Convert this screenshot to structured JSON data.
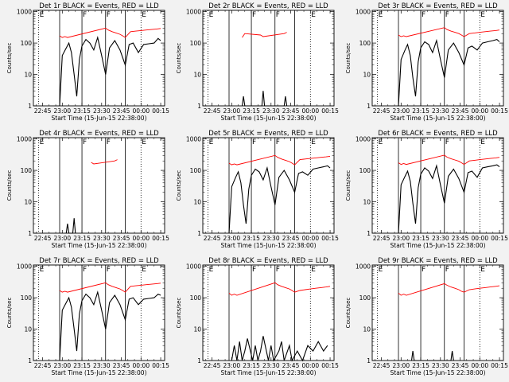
{
  "figure": {
    "type": "rhessi-detector-rate-grid",
    "rows": 3,
    "cols": 3
  },
  "colors": {
    "background": "#f2f2f2",
    "frame": "#000000",
    "events": "#000000",
    "lld": "#ff0000"
  },
  "common": {
    "ylabel": "Counts/sec",
    "xlabel": "Start Time (15-Jun-15 22:38:00)",
    "ytick_labels": [
      "1",
      "10",
      "100",
      "1000"
    ],
    "xtick_labels": [
      "22:45",
      "23:00",
      "23:15",
      "23:30",
      "23:45",
      "00:00",
      "00:15"
    ],
    "marker_labels": [
      "E",
      "F",
      "F",
      "E"
    ]
  },
  "chart_data": [
    {
      "type": "line",
      "title": "Det 1r BLACK = Events, RED = LLD",
      "x_unit": "minutes since 22:38:00",
      "xlim": [
        0,
        100
      ],
      "ylim": [
        1,
        1100
      ],
      "yscale": "log",
      "eclipse_markers": [
        {
          "t": 4,
          "label": "E"
        },
        {
          "t": 82,
          "label": "E"
        }
      ],
      "flare_lines": [
        20,
        37,
        55,
        70
      ],
      "flare_markers": [
        {
          "t": 37,
          "label": "F"
        },
        {
          "t": 55,
          "label": "F"
        }
      ],
      "series": [
        {
          "name": "Events",
          "color": "black",
          "x": [
            20,
            22,
            25,
            27,
            29,
            31,
            33,
            35,
            37,
            40,
            43,
            46,
            49,
            52,
            55,
            58,
            62,
            66,
            70,
            73,
            76,
            80,
            84,
            88,
            92,
            95,
            97
          ],
          "y": [
            1,
            40,
            70,
            100,
            50,
            10,
            2,
            30,
            80,
            130,
            100,
            60,
            150,
            40,
            10,
            70,
            120,
            60,
            20,
            90,
            100,
            50,
            90,
            95,
            100,
            140,
            120
          ]
        },
        {
          "name": "LLD",
          "color": "red",
          "x": [
            20,
            22,
            24,
            26,
            55,
            57,
            60,
            63,
            66,
            68,
            70,
            74,
            78,
            82,
            86,
            90,
            94,
            97
          ],
          "y": [
            170,
            150,
            160,
            150,
            300,
            260,
            230,
            210,
            190,
            170,
            150,
            230,
            240,
            250,
            260,
            270,
            280,
            290
          ]
        }
      ]
    },
    {
      "type": "line",
      "title": "Det 2r BLACK = Events, RED = LLD",
      "x_unit": "minutes since 22:38:00",
      "xlim": [
        0,
        100
      ],
      "ylim": [
        1,
        1100
      ],
      "yscale": "log",
      "eclipse_markers": [
        {
          "t": 4,
          "label": "E"
        },
        {
          "t": 82,
          "label": "E"
        }
      ],
      "flare_lines": [
        20,
        37,
        55,
        70
      ],
      "flare_markers": [
        {
          "t": 37,
          "label": "F"
        },
        {
          "t": 55,
          "label": "F"
        }
      ],
      "series": [
        {
          "name": "Events",
          "color": "black",
          "x": [
            30,
            31,
            32,
            45,
            46,
            47,
            62,
            63,
            64
          ],
          "y": [
            1,
            2,
            1,
            1,
            3,
            1,
            1,
            2,
            1
          ]
        },
        {
          "name": "LLD",
          "color": "red",
          "x": [
            30,
            32,
            44,
            46,
            62,
            64
          ],
          "y": [
            150,
            200,
            180,
            160,
            200,
            220
          ]
        }
      ]
    },
    {
      "type": "line",
      "title": "Det 3r BLACK = Events, RED = LLD",
      "x_unit": "minutes since 22:38:00",
      "xlim": [
        0,
        100
      ],
      "ylim": [
        1,
        1100
      ],
      "yscale": "log",
      "eclipse_markers": [
        {
          "t": 4,
          "label": "E"
        },
        {
          "t": 82,
          "label": "E"
        }
      ],
      "flare_lines": [
        20,
        37,
        55,
        70
      ],
      "flare_markers": [
        {
          "t": 37,
          "label": "F"
        },
        {
          "t": 55,
          "label": "F"
        }
      ],
      "series": [
        {
          "name": "Events",
          "color": "black",
          "x": [
            20,
            22,
            25,
            27,
            29,
            31,
            33,
            35,
            37,
            40,
            43,
            46,
            49,
            52,
            55,
            58,
            62,
            66,
            70,
            73,
            76,
            80,
            84,
            88,
            92,
            95,
            97
          ],
          "y": [
            1,
            30,
            60,
            90,
            40,
            8,
            2,
            25,
            70,
            110,
            90,
            50,
            120,
            30,
            8,
            60,
            100,
            50,
            20,
            70,
            80,
            60,
            100,
            110,
            120,
            130,
            110
          ]
        },
        {
          "name": "LLD",
          "color": "red",
          "x": [
            20,
            22,
            24,
            26,
            55,
            57,
            60,
            63,
            66,
            68,
            70,
            74,
            78,
            82,
            86,
            90,
            94,
            97
          ],
          "y": [
            180,
            160,
            170,
            160,
            310,
            270,
            240,
            220,
            200,
            180,
            160,
            200,
            210,
            220,
            230,
            240,
            250,
            260
          ]
        }
      ]
    },
    {
      "type": "line",
      "title": "Det 4r BLACK = Events, RED = LLD",
      "x_unit": "minutes since 22:38:00",
      "xlim": [
        0,
        100
      ],
      "ylim": [
        1,
        1100
      ],
      "yscale": "log",
      "eclipse_markers": [
        {
          "t": 4,
          "label": "E"
        },
        {
          "t": 82,
          "label": "E"
        }
      ],
      "flare_lines": [
        20,
        37,
        55,
        70
      ],
      "flare_markers": [
        {
          "t": 37,
          "label": "F"
        },
        {
          "t": 55,
          "label": "F"
        }
      ],
      "series": [
        {
          "name": "Events",
          "color": "black",
          "x": [
            25,
            26,
            27,
            30,
            31,
            32
          ],
          "y": [
            1,
            2,
            1,
            1,
            3,
            1
          ]
        },
        {
          "name": "LLD",
          "color": "red",
          "x": [
            44,
            46,
            62,
            64
          ],
          "y": [
            180,
            160,
            200,
            220
          ]
        }
      ]
    },
    {
      "type": "line",
      "title": "Det 5r BLACK = Events, RED = LLD",
      "x_unit": "minutes since 22:38:00",
      "xlim": [
        0,
        100
      ],
      "ylim": [
        1,
        1100
      ],
      "yscale": "log",
      "eclipse_markers": [
        {
          "t": 4,
          "label": "E"
        },
        {
          "t": 82,
          "label": "E"
        }
      ],
      "flare_lines": [
        20,
        37,
        55,
        70
      ],
      "flare_markers": [
        {
          "t": 37,
          "label": "F"
        },
        {
          "t": 55,
          "label": "F"
        }
      ],
      "series": [
        {
          "name": "Events",
          "color": "black",
          "x": [
            20,
            22,
            25,
            27,
            29,
            31,
            33,
            35,
            37,
            40,
            43,
            46,
            49,
            52,
            55,
            58,
            62,
            66,
            70,
            73,
            76,
            80,
            84,
            88,
            92,
            95,
            97
          ],
          "y": [
            1,
            30,
            60,
            90,
            40,
            8,
            2,
            25,
            70,
            110,
            90,
            50,
            120,
            30,
            8,
            60,
            100,
            50,
            20,
            80,
            90,
            70,
            110,
            120,
            130,
            140,
            120
          ]
        },
        {
          "name": "LLD",
          "color": "red",
          "x": [
            20,
            22,
            24,
            26,
            55,
            57,
            60,
            63,
            66,
            68,
            70,
            74,
            78,
            82,
            86,
            90,
            94,
            97
          ],
          "y": [
            170,
            150,
            160,
            150,
            300,
            260,
            230,
            210,
            190,
            170,
            150,
            220,
            230,
            240,
            250,
            260,
            270,
            280
          ]
        }
      ]
    },
    {
      "type": "line",
      "title": "Det 6r BLACK = Events, RED = LLD",
      "x_unit": "minutes since 22:38:00",
      "xlim": [
        0,
        100
      ],
      "ylim": [
        1,
        1100
      ],
      "yscale": "log",
      "eclipse_markers": [
        {
          "t": 4,
          "label": "E"
        },
        {
          "t": 82,
          "label": "E"
        }
      ],
      "flare_lines": [
        20,
        37,
        55,
        70
      ],
      "flare_markers": [
        {
          "t": 37,
          "label": "F"
        },
        {
          "t": 55,
          "label": "F"
        }
      ],
      "series": [
        {
          "name": "Events",
          "color": "black",
          "x": [
            20,
            22,
            25,
            27,
            29,
            31,
            33,
            35,
            37,
            40,
            43,
            46,
            49,
            52,
            55,
            58,
            62,
            66,
            70,
            73,
            76,
            80,
            84,
            88,
            92,
            95,
            97
          ],
          "y": [
            1,
            35,
            65,
            95,
            45,
            9,
            2,
            28,
            75,
            120,
            95,
            55,
            140,
            35,
            9,
            65,
            110,
            55,
            20,
            85,
            95,
            60,
            120,
            130,
            140,
            150,
            130
          ]
        },
        {
          "name": "LLD",
          "color": "red",
          "x": [
            20,
            22,
            24,
            26,
            55,
            57,
            60,
            63,
            66,
            68,
            70,
            74,
            78,
            82,
            86,
            90,
            94,
            97
          ],
          "y": [
            175,
            155,
            165,
            155,
            305,
            265,
            235,
            215,
            195,
            175,
            155,
            200,
            210,
            220,
            230,
            240,
            250,
            260
          ]
        }
      ]
    },
    {
      "type": "line",
      "title": "Det 7r BLACK = Events, RED = LLD",
      "x_unit": "minutes since 22:38:00",
      "xlim": [
        0,
        100
      ],
      "ylim": [
        1,
        1100
      ],
      "yscale": "log",
      "eclipse_markers": [
        {
          "t": 4,
          "label": "E"
        },
        {
          "t": 82,
          "label": "E"
        }
      ],
      "flare_lines": [
        20,
        37,
        55,
        70
      ],
      "flare_markers": [
        {
          "t": 37,
          "label": "F"
        },
        {
          "t": 55,
          "label": "F"
        }
      ],
      "series": [
        {
          "name": "Events",
          "color": "black",
          "x": [
            20,
            22,
            25,
            27,
            29,
            31,
            33,
            35,
            37,
            40,
            43,
            46,
            49,
            52,
            55,
            58,
            62,
            66,
            70,
            73,
            76,
            80,
            84,
            88,
            92,
            95,
            97
          ],
          "y": [
            1,
            40,
            70,
            100,
            50,
            10,
            2,
            30,
            80,
            130,
            100,
            60,
            150,
            40,
            10,
            70,
            120,
            60,
            20,
            90,
            100,
            60,
            90,
            95,
            100,
            130,
            120
          ]
        },
        {
          "name": "LLD",
          "color": "red",
          "x": [
            20,
            22,
            24,
            26,
            55,
            57,
            60,
            63,
            66,
            68,
            70,
            74,
            78,
            82,
            86,
            90,
            94,
            97
          ],
          "y": [
            170,
            150,
            160,
            150,
            300,
            260,
            230,
            210,
            190,
            170,
            150,
            230,
            240,
            250,
            260,
            270,
            280,
            290
          ]
        }
      ]
    },
    {
      "type": "line",
      "title": "Det 8r BLACK = Events, RED = LLD",
      "x_unit": "minutes since 22:38:00",
      "xlim": [
        0,
        100
      ],
      "ylim": [
        1,
        1100
      ],
      "yscale": "log",
      "eclipse_markers": [
        {
          "t": 4,
          "label": "E"
        },
        {
          "t": 82,
          "label": "E"
        }
      ],
      "flare_lines": [
        20,
        37,
        55,
        70
      ],
      "flare_markers": [
        {
          "t": 37,
          "label": "F"
        },
        {
          "t": 55,
          "label": "F"
        }
      ],
      "series": [
        {
          "name": "Events",
          "color": "black",
          "x": [
            22,
            24,
            26,
            28,
            30,
            32,
            34,
            38,
            40,
            42,
            44,
            46,
            50,
            52,
            54,
            58,
            60,
            62,
            66,
            68,
            72,
            76,
            80,
            84,
            88,
            92,
            95
          ],
          "y": [
            1,
            3,
            1,
            4,
            1,
            2,
            5,
            1,
            3,
            1,
            2,
            6,
            1,
            3,
            1,
            2,
            4,
            1,
            3,
            1,
            2,
            1,
            3,
            2,
            4,
            2,
            3
          ]
        },
        {
          "name": "LLD",
          "color": "red",
          "x": [
            20,
            22,
            24,
            26,
            55,
            57,
            60,
            63,
            66,
            68,
            70,
            74,
            78,
            82,
            86,
            90,
            94,
            97
          ],
          "y": [
            140,
            120,
            130,
            120,
            300,
            260,
            230,
            210,
            190,
            170,
            150,
            170,
            180,
            190,
            200,
            210,
            220,
            230
          ]
        }
      ]
    },
    {
      "type": "line",
      "title": "Det 9r BLACK = Events, RED = LLD",
      "x_unit": "minutes since 22:38:00",
      "xlim": [
        0,
        100
      ],
      "ylim": [
        1,
        1100
      ],
      "yscale": "log",
      "eclipse_markers": [
        {
          "t": 4,
          "label": "E"
        },
        {
          "t": 82,
          "label": "E"
        }
      ],
      "flare_lines": [
        20,
        37,
        55,
        70
      ],
      "flare_markers": [
        {
          "t": 37,
          "label": "F"
        },
        {
          "t": 55,
          "label": "F"
        }
      ],
      "series": [
        {
          "name": "Events",
          "color": "black",
          "x": [
            30,
            31,
            32,
            60,
            61,
            62
          ],
          "y": [
            1,
            2,
            1,
            1,
            2,
            1
          ]
        },
        {
          "name": "LLD",
          "color": "red",
          "x": [
            20,
            22,
            24,
            26,
            55,
            57,
            60,
            63,
            66,
            68,
            70,
            74,
            78,
            82,
            86,
            90,
            94,
            97
          ],
          "y": [
            140,
            120,
            130,
            120,
            280,
            250,
            220,
            200,
            180,
            160,
            150,
            180,
            190,
            200,
            210,
            220,
            230,
            240
          ]
        }
      ]
    }
  ]
}
